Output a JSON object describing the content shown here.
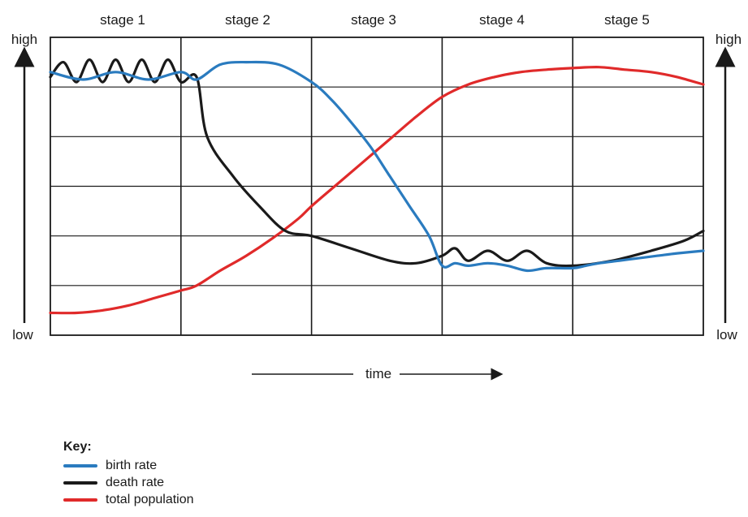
{
  "chart_data": {
    "type": "line",
    "stages": [
      "stage 1",
      "stage 2",
      "stage 3",
      "stage 4",
      "stage 5"
    ],
    "y_axis": {
      "high_label": "high",
      "low_label": "low"
    },
    "x_axis": {
      "label": "time"
    },
    "xlim": [
      0,
      5
    ],
    "ylim": [
      0,
      6
    ],
    "grid": true,
    "series": [
      {
        "name": "birth rate",
        "color": "#2a7bbf",
        "x": [
          0,
          0.25,
          0.5,
          0.75,
          1.0,
          1.12,
          1.3,
          1.5,
          1.75,
          2.0,
          2.15,
          2.3,
          2.45,
          2.6,
          2.75,
          2.9,
          3.0,
          3.1,
          3.2,
          3.35,
          3.5,
          3.65,
          3.8,
          4.0,
          4.1,
          4.2,
          4.35,
          4.5,
          4.65,
          4.8,
          5.0
        ],
        "y": [
          5.3,
          5.15,
          5.3,
          5.15,
          5.3,
          5.15,
          5.45,
          5.5,
          5.45,
          5.1,
          4.75,
          4.3,
          3.8,
          3.2,
          2.6,
          2.0,
          1.4,
          1.45,
          1.4,
          1.45,
          1.4,
          1.3,
          1.35,
          1.35,
          1.4,
          1.45,
          1.5,
          1.55,
          1.6,
          1.65,
          1.7
        ]
      },
      {
        "name": "death rate",
        "color": "#1a1a1a",
        "x": [
          0,
          0.1,
          0.2,
          0.3,
          0.4,
          0.5,
          0.6,
          0.7,
          0.8,
          0.9,
          1.0,
          1.12,
          1.2,
          1.4,
          1.6,
          1.8,
          2.0,
          2.3,
          2.6,
          2.8,
          3.0,
          3.1,
          3.2,
          3.35,
          3.5,
          3.65,
          3.8,
          4.0,
          4.3,
          4.6,
          4.85,
          5.0
        ],
        "y": [
          5.2,
          5.5,
          5.1,
          5.55,
          5.1,
          5.55,
          5.1,
          5.55,
          5.1,
          5.55,
          5.1,
          5.2,
          4.0,
          3.2,
          2.6,
          2.1,
          2.0,
          1.75,
          1.5,
          1.45,
          1.6,
          1.75,
          1.5,
          1.7,
          1.5,
          1.7,
          1.45,
          1.4,
          1.5,
          1.7,
          1.9,
          2.1
        ]
      },
      {
        "name": "total population",
        "color": "#e02a2a",
        "x": [
          0,
          0.2,
          0.4,
          0.6,
          0.8,
          1.0,
          1.12,
          1.3,
          1.5,
          1.7,
          1.9,
          2.0,
          2.2,
          2.4,
          2.6,
          2.8,
          3.0,
          3.2,
          3.4,
          3.6,
          3.8,
          4.0,
          4.2,
          4.4,
          4.6,
          4.8,
          5.0
        ],
        "y": [
          0.45,
          0.45,
          0.5,
          0.6,
          0.75,
          0.9,
          1.0,
          1.3,
          1.6,
          1.95,
          2.35,
          2.6,
          3.05,
          3.5,
          3.95,
          4.4,
          4.8,
          5.05,
          5.2,
          5.3,
          5.35,
          5.38,
          5.4,
          5.35,
          5.3,
          5.2,
          5.05
        ]
      }
    ]
  },
  "key": {
    "title": "Key:",
    "items": [
      {
        "label": "birth rate",
        "color": "#2a7bbf"
      },
      {
        "label": "death rate",
        "color": "#1a1a1a"
      },
      {
        "label": "total population",
        "color": "#e02a2a"
      }
    ]
  }
}
